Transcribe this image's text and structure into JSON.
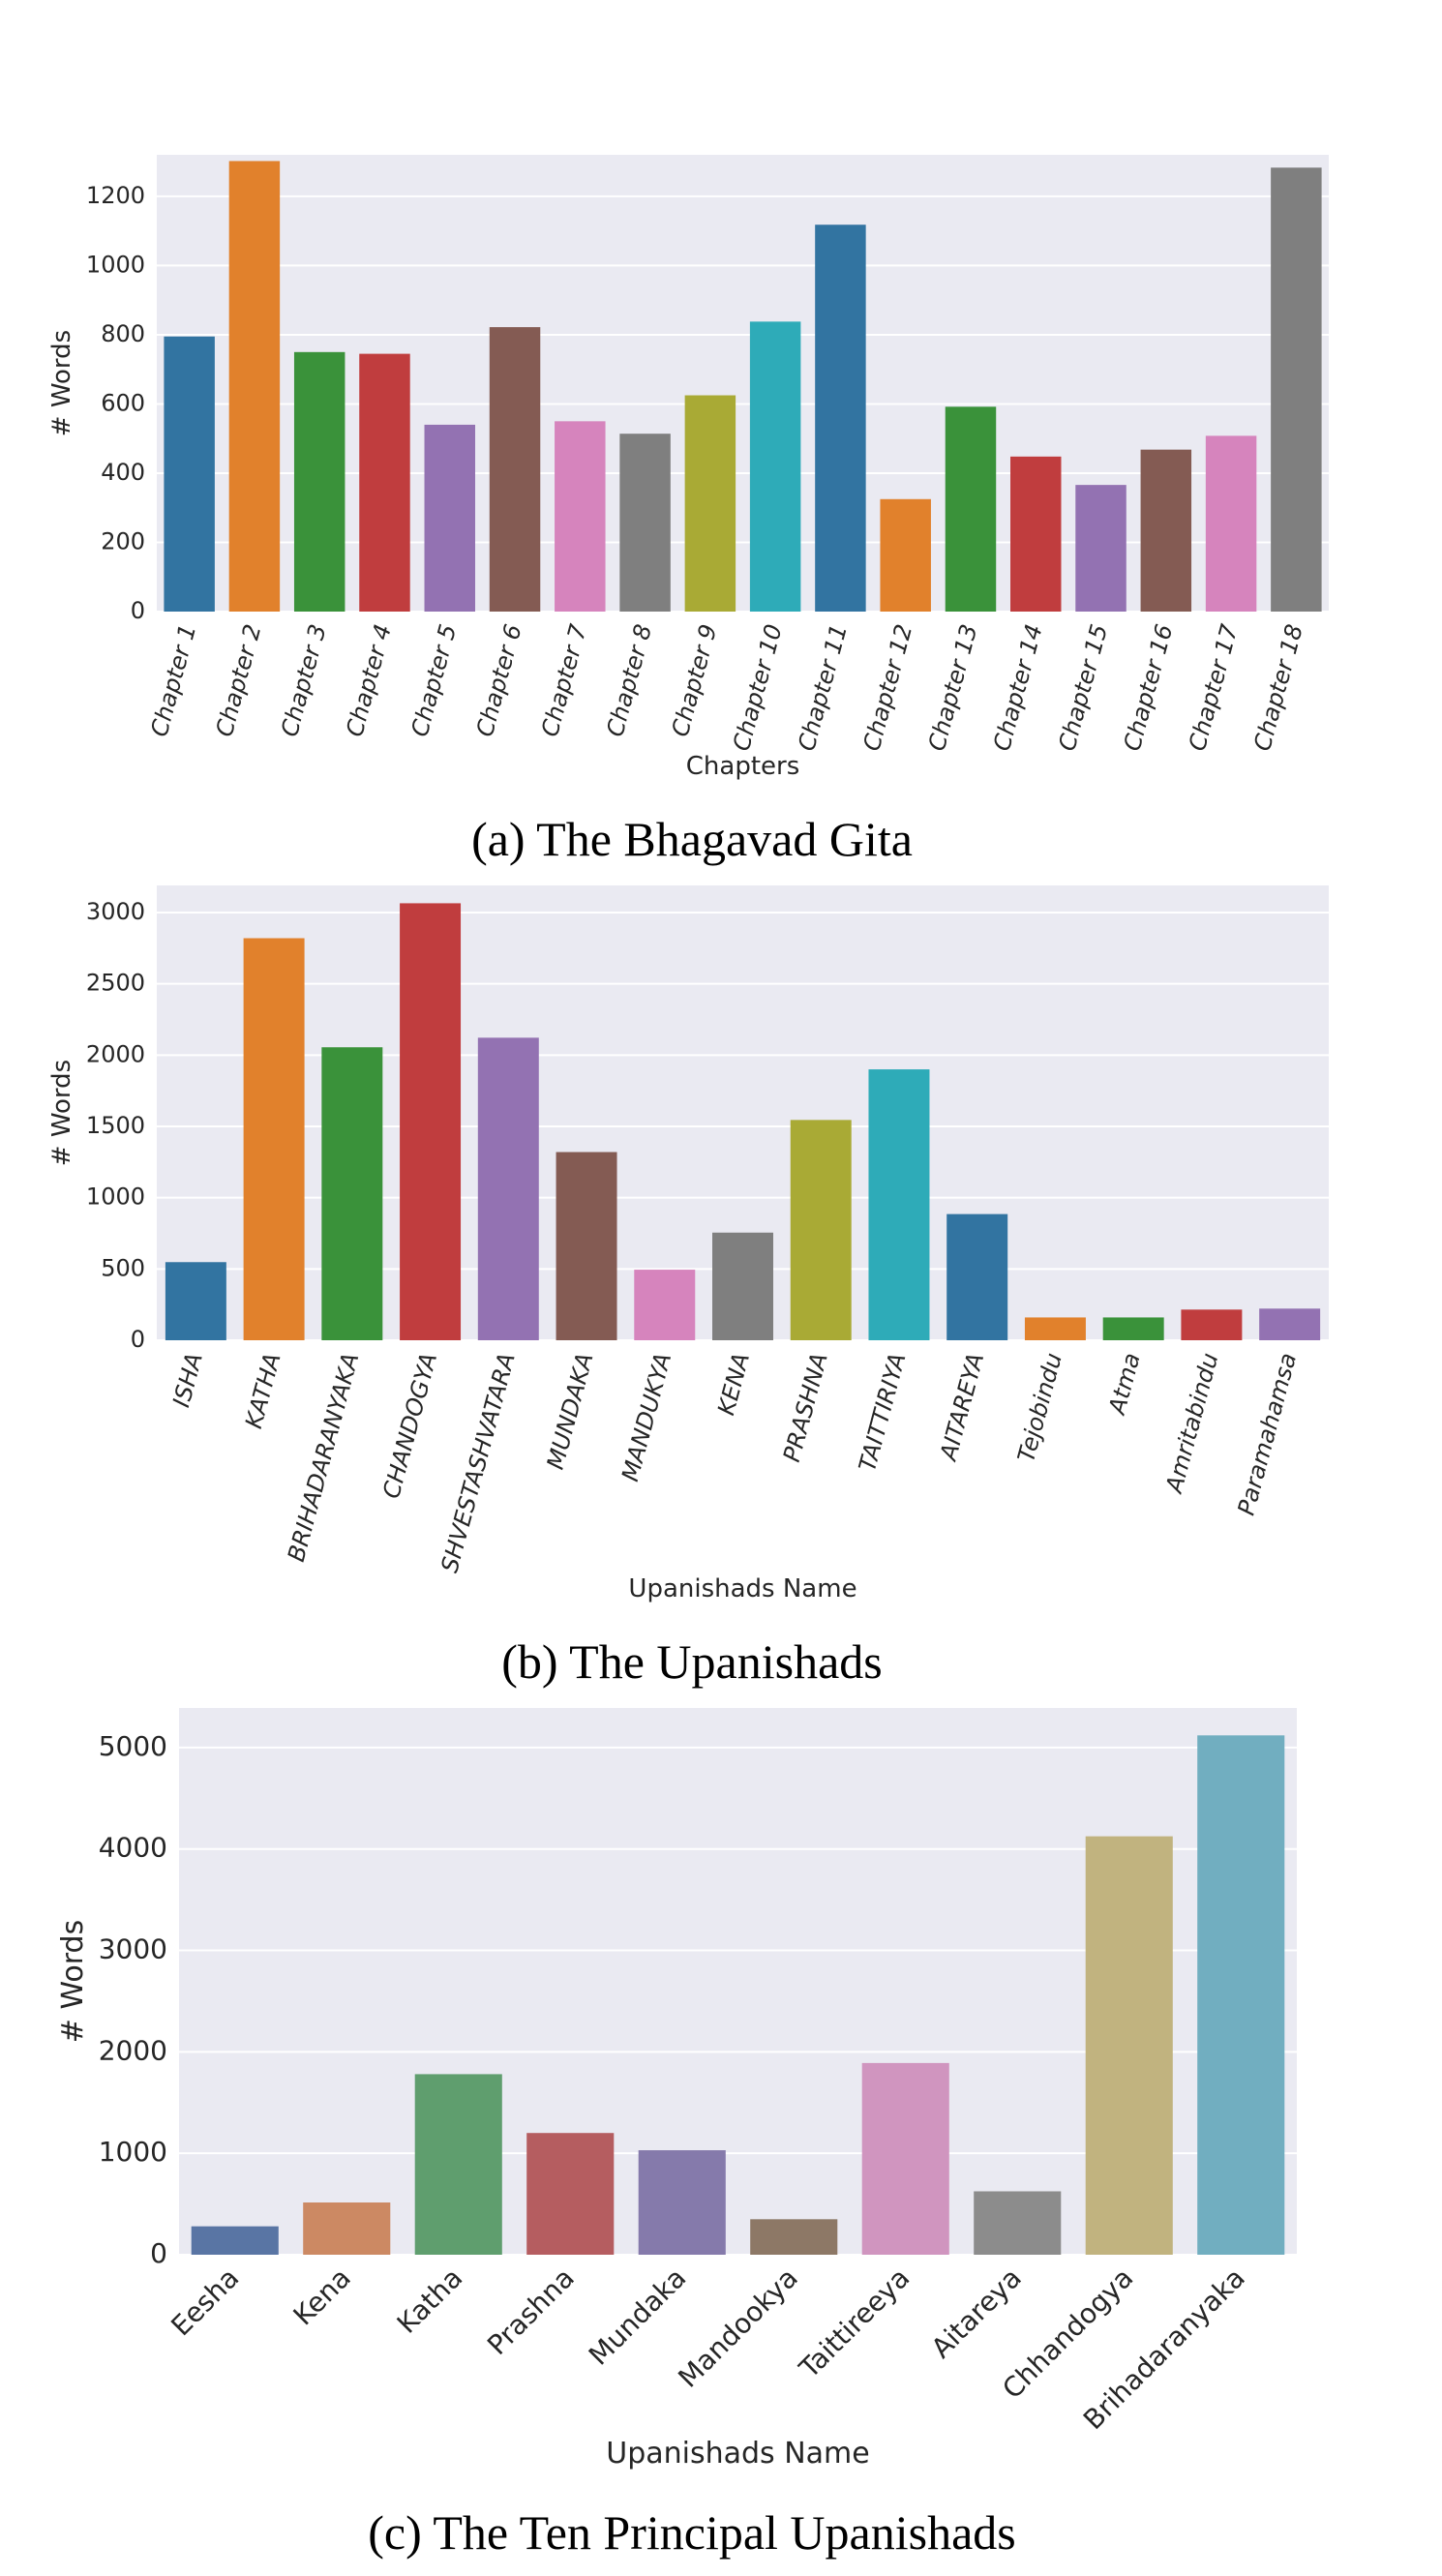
{
  "captions": {
    "a": "(a) The Bhagavad Gita",
    "b": "(b) The Upanishads",
    "c": "(c) The Ten Principal Upanishads"
  },
  "chart_data": [
    {
      "type": "bar",
      "title": "",
      "xlabel": "Chapters",
      "ylabel": "# Words",
      "ylim": [
        0,
        1320
      ],
      "yticks": [
        0,
        200,
        400,
        600,
        800,
        1000,
        1200
      ],
      "grid": true,
      "categories": [
        "Chapter 1",
        "Chapter 2",
        "Chapter 3",
        "Chapter 4",
        "Chapter 5",
        "Chapter 6",
        "Chapter 7",
        "Chapter 8",
        "Chapter 9",
        "Chapter 10",
        "Chapter 11",
        "Chapter 12",
        "Chapter 13",
        "Chapter 14",
        "Chapter 15",
        "Chapter 16",
        "Chapter 17",
        "Chapter 18"
      ],
      "values": [
        795,
        1302,
        750,
        745,
        540,
        822,
        550,
        514,
        625,
        838,
        1118,
        325,
        592,
        448,
        366,
        468,
        508,
        1283
      ],
      "colors": [
        "#3274a1",
        "#e1812c",
        "#3a923a",
        "#c03d3e",
        "#9372b2",
        "#845b53",
        "#d684bd",
        "#7f7f7f",
        "#a9aa35",
        "#2eabb8",
        "#3274a1",
        "#e1812c",
        "#3a923a",
        "#c03d3e",
        "#9372b2",
        "#845b53",
        "#d684bd",
        "#7f7f7f"
      ]
    },
    {
      "type": "bar",
      "title": "",
      "xlabel": "Upanishads Name",
      "ylabel": "# Words",
      "ylim": [
        0,
        3190
      ],
      "yticks": [
        0,
        500,
        1000,
        1500,
        2000,
        2500,
        3000
      ],
      "grid": true,
      "categories": [
        "ISHA",
        "KATHA",
        "BRIHADARANYAKA",
        "CHANDOGYA",
        "SHVESTASHVATARA",
        "MUNDAKA",
        "MANDUKYA",
        "KENA",
        "PRASHNA",
        "TAITTIRIYA",
        "AITAREYA",
        "Tejobindu",
        "Atma",
        "Amritabindu",
        "Paramahamsa"
      ],
      "values": [
        548,
        2820,
        2055,
        3065,
        2122,
        1320,
        495,
        755,
        1545,
        1900,
        885,
        160,
        160,
        215,
        222
      ],
      "colors": [
        "#3274a1",
        "#e1812c",
        "#3a923a",
        "#c03d3e",
        "#9372b2",
        "#845b53",
        "#d684bd",
        "#7f7f7f",
        "#a9aa35",
        "#2eabb8",
        "#3274a1",
        "#e1812c",
        "#3a923a",
        "#c03d3e",
        "#9372b2"
      ]
    },
    {
      "type": "bar",
      "title": "",
      "xlabel": "Upanishads Name",
      "ylabel": "# Words",
      "ylim": [
        0,
        5390
      ],
      "yticks": [
        0,
        1000,
        2000,
        3000,
        4000,
        5000
      ],
      "grid": true,
      "categories": [
        "Eesha",
        "Kena",
        "Katha",
        "Prashna",
        "Mundaka",
        "Mandookya",
        "Taittireeya",
        "Aitareya",
        "Chhandogya",
        "Brihadaranyaka"
      ],
      "values": [
        280,
        515,
        1780,
        1200,
        1030,
        350,
        1890,
        625,
        4125,
        5120
      ],
      "colors": [
        "#5975a4",
        "#cc8963",
        "#5f9e6e",
        "#b55d60",
        "#857aab",
        "#8d7866",
        "#d095bf",
        "#8c8c8c",
        "#c1b37f",
        "#71aec0"
      ]
    }
  ]
}
